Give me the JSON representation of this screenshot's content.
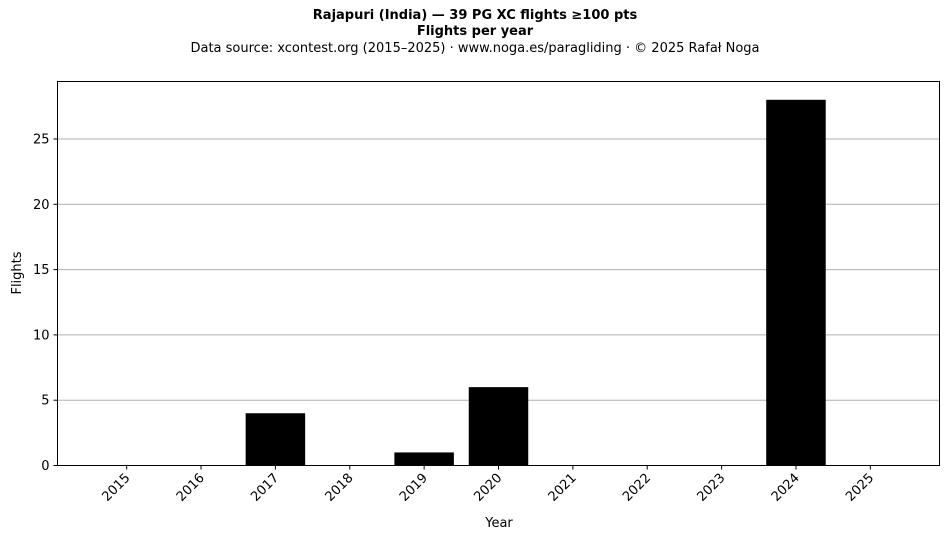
{
  "header": {
    "title": "Rajapuri (India)  —  39 PG XC flights ≥100 pts",
    "subtitle": "Flights per year",
    "source": "Data source: xcontest.org (2015–2025)  ·  www.noga.es/paragliding  ·  © 2025 Rafał Noga"
  },
  "chart_data": {
    "type": "bar",
    "title": "Rajapuri (India)  —  39 PG XC flights ≥100 pts",
    "subtitle": "Flights per year",
    "xlabel": "Year",
    "ylabel": "Flights",
    "categories": [
      "2015",
      "2016",
      "2017",
      "2018",
      "2019",
      "2020",
      "2021",
      "2022",
      "2023",
      "2024",
      "2025"
    ],
    "values": [
      0,
      0,
      4,
      0,
      1,
      6,
      0,
      0,
      0,
      28,
      0
    ],
    "ylim": [
      0,
      29.4
    ],
    "yticks": [
      0,
      5,
      10,
      15,
      20,
      25
    ],
    "grid": "y",
    "bar_color": "#000000",
    "grid_color": "#b0b0b0"
  }
}
